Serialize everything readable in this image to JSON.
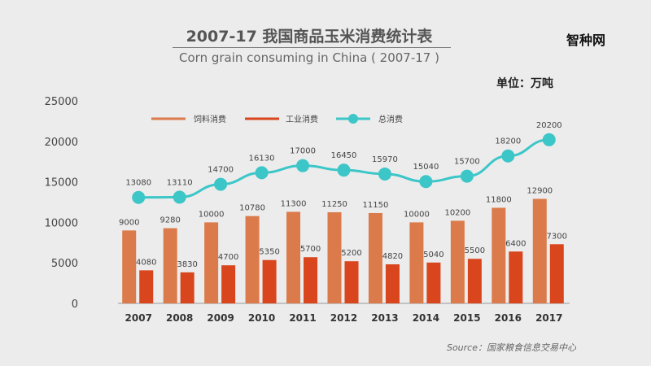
{
  "title_cn": "2007-17 我国商品玉米消费统计表",
  "title_en": "Corn grain consuming in China ( 2007-17 )",
  "watermark": "智种网",
  "unit": "单位：万吨",
  "source": "Source：国家粮食信息交易中心",
  "colors": {
    "feed": "#db7a4a",
    "industrial": "#d9451c",
    "total": "#3cc6c8",
    "background": "#ececec"
  },
  "chart_data": {
    "type": "bar",
    "categories": [
      "2007",
      "2008",
      "2009",
      "2010",
      "2011",
      "2012",
      "2013",
      "2014",
      "2015",
      "2016",
      "2017"
    ],
    "ylim": [
      0,
      25000
    ],
    "yticks": [
      "0",
      "5000",
      "10000",
      "15000",
      "20000",
      "25000"
    ],
    "series": [
      {
        "name": "饲料消费",
        "type": "bar",
        "values": [
          9000,
          9280,
          10000,
          10780,
          11300,
          11250,
          11150,
          10000,
          10200,
          11800,
          12900
        ]
      },
      {
        "name": "工业消费",
        "type": "bar",
        "values": [
          4080,
          3830,
          4700,
          5350,
          5700,
          5200,
          4820,
          5040,
          5500,
          6400,
          7300
        ]
      },
      {
        "name": "总消费",
        "type": "line",
        "values": [
          13080,
          13110,
          14700,
          16130,
          17000,
          16450,
          15970,
          15040,
          15700,
          18200,
          20200
        ]
      }
    ]
  }
}
